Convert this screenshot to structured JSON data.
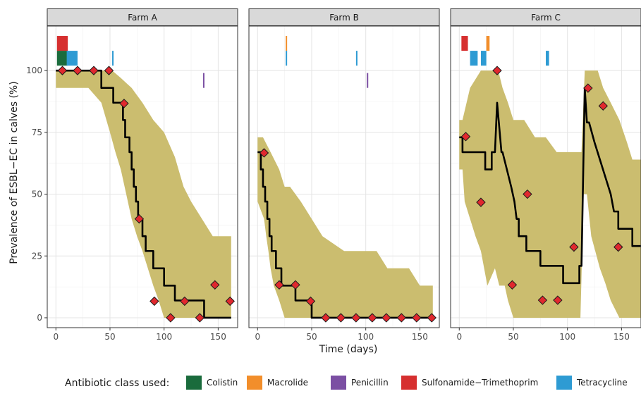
{
  "chart_data": {
    "type": "line",
    "facets": [
      "Farm A",
      "Farm B",
      "Farm C"
    ],
    "xlabel": "Time (days)",
    "ylabel": "Prevalence of ESBL−EC in calves (%)",
    "x_ticks": [
      0,
      50,
      100,
      150
    ],
    "y_ticks": [
      0,
      25,
      50,
      75,
      100
    ],
    "xlim": [
      -8,
      168
    ],
    "ylim": [
      -4,
      118
    ],
    "grid": true,
    "legend": {
      "title": "Antibiotic class used:",
      "position": "bottom",
      "items": [
        {
          "label": "Colistin",
          "color": "#1a6b3c"
        },
        {
          "label": "Macrolide",
          "color": "#f28e2b"
        },
        {
          "label": "Penicillin",
          "color": "#7b4fa3"
        },
        {
          "label": "Sulfonamide−Trimethoprim",
          "color": "#d62f2f"
        },
        {
          "label": "Tetracycline",
          "color": "#2e9bd3"
        }
      ]
    },
    "series_style": {
      "median_color": "#000000",
      "band_color": "#cbbd6f",
      "point_color": "#e0282e"
    },
    "panels": [
      {
        "title": "Farm A",
        "observed": [
          [
            6,
            100
          ],
          [
            20,
            100
          ],
          [
            35,
            100
          ],
          [
            49,
            100
          ],
          [
            63,
            86.7
          ],
          [
            77,
            40
          ],
          [
            91,
            6.7
          ],
          [
            106,
            0
          ],
          [
            119,
            6.7
          ],
          [
            133,
            0
          ],
          [
            147,
            13.3
          ],
          [
            161,
            6.7
          ]
        ],
        "median": [
          [
            0,
            100
          ],
          [
            42,
            100
          ],
          [
            42,
            93
          ],
          [
            53,
            93
          ],
          [
            53,
            87
          ],
          [
            62,
            87
          ],
          [
            62,
            80
          ],
          [
            64,
            80
          ],
          [
            64,
            73
          ],
          [
            68,
            73
          ],
          [
            68,
            67
          ],
          [
            70,
            67
          ],
          [
            70,
            60
          ],
          [
            72,
            60
          ],
          [
            72,
            53
          ],
          [
            74,
            53
          ],
          [
            74,
            47
          ],
          [
            76,
            47
          ],
          [
            76,
            40
          ],
          [
            80,
            40
          ],
          [
            80,
            33
          ],
          [
            83,
            33
          ],
          [
            83,
            27
          ],
          [
            90,
            27
          ],
          [
            90,
            20
          ],
          [
            100,
            20
          ],
          [
            100,
            13
          ],
          [
            110,
            13
          ],
          [
            110,
            7
          ],
          [
            137,
            7
          ],
          [
            137,
            0
          ],
          [
            162,
            0
          ]
        ],
        "band_upper": [
          [
            0,
            100
          ],
          [
            52,
            100
          ],
          [
            60,
            97
          ],
          [
            65,
            95
          ],
          [
            70,
            93
          ],
          [
            75,
            90
          ],
          [
            80,
            87
          ],
          [
            90,
            80
          ],
          [
            100,
            75
          ],
          [
            110,
            65
          ],
          [
            118,
            53
          ],
          [
            125,
            47
          ],
          [
            135,
            40
          ],
          [
            145,
            33
          ],
          [
            155,
            33
          ],
          [
            162,
            33
          ]
        ],
        "band_lower": [
          [
            0,
            93
          ],
          [
            30,
            93
          ],
          [
            42,
            87
          ],
          [
            50,
            75
          ],
          [
            55,
            67
          ],
          [
            60,
            60
          ],
          [
            65,
            50
          ],
          [
            70,
            40
          ],
          [
            75,
            33
          ],
          [
            80,
            27
          ],
          [
            85,
            20
          ],
          [
            90,
            13
          ],
          [
            95,
            7
          ],
          [
            100,
            0
          ],
          [
            162,
            0
          ]
        ],
        "treatments": [
          {
            "class": "Sulfonamide−Trimethoprim",
            "start": 1,
            "end": 11,
            "row": 0
          },
          {
            "class": "Colistin",
            "start": 1,
            "end": 11,
            "row": 1
          },
          {
            "class": "Tetracycline",
            "start": 10,
            "end": 20,
            "row": 1
          },
          {
            "class": "Tetracycline",
            "start": 52,
            "end": 53,
            "row": 1
          },
          {
            "class": "Penicillin",
            "start": 136,
            "end": 137,
            "row": 2
          }
        ]
      },
      {
        "title": "Farm B",
        "observed": [
          [
            6,
            66.7
          ],
          [
            20,
            13.3
          ],
          [
            35,
            13.3
          ],
          [
            49,
            6.7
          ],
          [
            63,
            0
          ],
          [
            77,
            0
          ],
          [
            91,
            0
          ],
          [
            106,
            0
          ],
          [
            119,
            0
          ],
          [
            133,
            0
          ],
          [
            147,
            0
          ],
          [
            161,
            0
          ]
        ],
        "median": [
          [
            0,
            67
          ],
          [
            3,
            67
          ],
          [
            3,
            60
          ],
          [
            5,
            60
          ],
          [
            5,
            53
          ],
          [
            7,
            53
          ],
          [
            7,
            47
          ],
          [
            9,
            47
          ],
          [
            9,
            40
          ],
          [
            11,
            40
          ],
          [
            11,
            33
          ],
          [
            13,
            33
          ],
          [
            13,
            27
          ],
          [
            17,
            27
          ],
          [
            17,
            20
          ],
          [
            22,
            20
          ],
          [
            22,
            13
          ],
          [
            35,
            13
          ],
          [
            35,
            7
          ],
          [
            50,
            7
          ],
          [
            50,
            0
          ],
          [
            162,
            0
          ]
        ],
        "band_upper": [
          [
            0,
            73
          ],
          [
            5,
            73
          ],
          [
            12,
            67
          ],
          [
            20,
            60
          ],
          [
            25,
            53
          ],
          [
            30,
            53
          ],
          [
            40,
            47
          ],
          [
            50,
            40
          ],
          [
            60,
            33
          ],
          [
            70,
            30
          ],
          [
            80,
            27
          ],
          [
            90,
            27
          ],
          [
            100,
            27
          ],
          [
            110,
            27
          ],
          [
            120,
            20
          ],
          [
            130,
            20
          ],
          [
            140,
            20
          ],
          [
            150,
            13
          ],
          [
            160,
            13
          ],
          [
            162,
            13
          ]
        ],
        "band_lower": [
          [
            0,
            47
          ],
          [
            6,
            40
          ],
          [
            8,
            33
          ],
          [
            10,
            27
          ],
          [
            12,
            20
          ],
          [
            15,
            13
          ],
          [
            20,
            7
          ],
          [
            25,
            0
          ],
          [
            162,
            0
          ]
        ],
        "treatments": [
          {
            "class": "Macrolide",
            "start": 26,
            "end": 27,
            "row": 0
          },
          {
            "class": "Tetracycline",
            "start": 26,
            "end": 27,
            "row": 1
          },
          {
            "class": "Tetracycline",
            "start": 91,
            "end": 92,
            "row": 1
          },
          {
            "class": "Penicillin",
            "start": 101,
            "end": 102,
            "row": 2
          }
        ]
      },
      {
        "title": "Farm C",
        "observed": [
          [
            6,
            73.3
          ],
          [
            20,
            46.7
          ],
          [
            35,
            100
          ],
          [
            49,
            13.3
          ],
          [
            63,
            50
          ],
          [
            77,
            7.1
          ],
          [
            91,
            7.1
          ],
          [
            106,
            28.6
          ],
          [
            119,
            92.9
          ],
          [
            133,
            85.7
          ],
          [
            147,
            28.6
          ]
        ],
        "median": [
          [
            0,
            73
          ],
          [
            3,
            73
          ],
          [
            3,
            67
          ],
          [
            24,
            67
          ],
          [
            24,
            60
          ],
          [
            30,
            60
          ],
          [
            30,
            67
          ],
          [
            33,
            67
          ],
          [
            35,
            87
          ],
          [
            39,
            67
          ],
          [
            40,
            67
          ],
          [
            44,
            60
          ],
          [
            48,
            53
          ],
          [
            51,
            47
          ],
          [
            53,
            40
          ],
          [
            55,
            40
          ],
          [
            55,
            33
          ],
          [
            62,
            33
          ],
          [
            62,
            27
          ],
          [
            75,
            27
          ],
          [
            75,
            21
          ],
          [
            96,
            21
          ],
          [
            96,
            14
          ],
          [
            111,
            14
          ],
          [
            111,
            21
          ],
          [
            113,
            21
          ],
          [
            116,
            93
          ],
          [
            118,
            79
          ],
          [
            120,
            79
          ],
          [
            125,
            71
          ],
          [
            130,
            64
          ],
          [
            135,
            57
          ],
          [
            140,
            50
          ],
          [
            143,
            43
          ],
          [
            147,
            43
          ],
          [
            147,
            36
          ],
          [
            160,
            36
          ],
          [
            160,
            29
          ],
          [
            168,
            29
          ]
        ],
        "band_upper": [
          [
            0,
            80
          ],
          [
            3,
            80
          ],
          [
            10,
            93
          ],
          [
            20,
            100
          ],
          [
            26,
            100
          ],
          [
            28,
            100
          ],
          [
            33,
            100
          ],
          [
            36,
            100
          ],
          [
            40,
            93
          ],
          [
            45,
            87
          ],
          [
            50,
            80
          ],
          [
            60,
            80
          ],
          [
            70,
            73
          ],
          [
            80,
            73
          ],
          [
            90,
            67
          ],
          [
            100,
            67
          ],
          [
            110,
            67
          ],
          [
            113,
            67
          ],
          [
            116,
            100
          ],
          [
            120,
            100
          ],
          [
            128,
            100
          ],
          [
            133,
            93
          ],
          [
            140,
            87
          ],
          [
            148,
            80
          ],
          [
            155,
            71
          ],
          [
            160,
            64
          ],
          [
            168,
            64
          ]
        ],
        "band_lower": [
          [
            0,
            60
          ],
          [
            3,
            60
          ],
          [
            5,
            47
          ],
          [
            10,
            40
          ],
          [
            15,
            33
          ],
          [
            20,
            27
          ],
          [
            26,
            13
          ],
          [
            33,
            20
          ],
          [
            37,
            13
          ],
          [
            42,
            13
          ],
          [
            45,
            7
          ],
          [
            50,
            0
          ],
          [
            112,
            0
          ],
          [
            115,
            50
          ],
          [
            118,
            50
          ],
          [
            122,
            33
          ],
          [
            130,
            20
          ],
          [
            135,
            14
          ],
          [
            140,
            7
          ],
          [
            148,
            0
          ],
          [
            168,
            0
          ]
        ],
        "treatments": [
          {
            "class": "Sulfonamide−Trimethoprim",
            "start": 2,
            "end": 8,
            "row": 0
          },
          {
            "class": "Macrolide",
            "start": 25,
            "end": 28,
            "row": 0
          },
          {
            "class": "Tetracycline",
            "start": 10,
            "end": 17,
            "row": 1
          },
          {
            "class": "Tetracycline",
            "start": 20,
            "end": 25,
            "row": 1
          },
          {
            "class": "Tetracycline",
            "start": 80,
            "end": 83,
            "row": 1
          }
        ]
      }
    ]
  }
}
